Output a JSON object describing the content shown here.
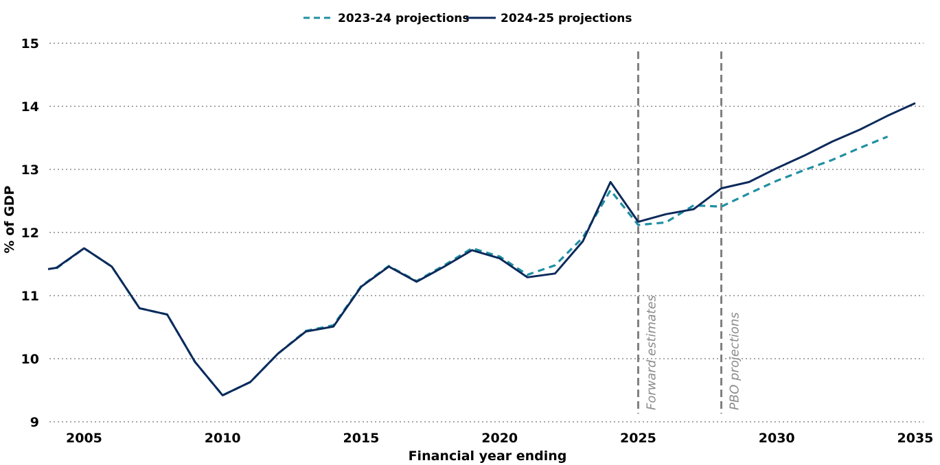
{
  "chart_data": {
    "type": "line",
    "xlabel": "Financial year ending",
    "ylabel": "% of GDP",
    "xlim": [
      2003.7,
      2035.1
    ],
    "ylim": [
      9,
      15
    ],
    "x_ticks": [
      2005,
      2010,
      2015,
      2020,
      2025,
      2030,
      2035
    ],
    "y_ticks": [
      9,
      10,
      11,
      12,
      13,
      14,
      15
    ],
    "grid": "horizontal-dotted",
    "legend": "top-center",
    "series": [
      {
        "name": "2023-24 projections",
        "color": "#1f8fa3",
        "style": "dashed",
        "x": [
          2004,
          2005,
          2006,
          2007,
          2008,
          2009,
          2010,
          2011,
          2012,
          2013,
          2014,
          2015,
          2016,
          2017,
          2018,
          2019,
          2020,
          2021,
          2022,
          2023,
          2024,
          2025,
          2026,
          2027,
          2028,
          2029,
          2030,
          2031,
          2032,
          2033,
          2034
        ],
        "y": [
          11.43,
          11.75,
          11.46,
          10.8,
          10.7,
          9.95,
          9.42,
          9.63,
          10.08,
          10.44,
          10.53,
          11.15,
          11.47,
          11.23,
          11.48,
          11.75,
          11.62,
          11.33,
          11.48,
          11.92,
          12.67,
          12.12,
          12.16,
          12.43,
          12.41,
          12.62,
          12.82,
          12.99,
          13.15,
          13.34,
          13.52
        ]
      },
      {
        "name": "2024-25 projections",
        "color": "#0c2a5b",
        "style": "solid",
        "x": [
          2003.7,
          2004,
          2005,
          2006,
          2007,
          2008,
          2009,
          2010,
          2011,
          2012,
          2013,
          2014,
          2015,
          2016,
          2017,
          2018,
          2019,
          2020,
          2021,
          2022,
          2023,
          2024,
          2025,
          2026,
          2027,
          2028,
          2029,
          2030,
          2031,
          2032,
          2033,
          2034,
          2035
        ],
        "y": [
          11.42,
          11.44,
          11.75,
          11.46,
          10.8,
          10.7,
          9.95,
          9.42,
          9.63,
          10.08,
          10.43,
          10.51,
          11.14,
          11.46,
          11.22,
          11.46,
          11.72,
          11.59,
          11.29,
          11.35,
          11.86,
          12.8,
          12.17,
          12.29,
          12.37,
          12.7,
          12.8,
          13.02,
          13.22,
          13.44,
          13.63,
          13.85,
          14.05
        ]
      }
    ],
    "annotations": [
      {
        "x": 2025,
        "label": "Forward estimates"
      },
      {
        "x": 2028,
        "label": "PBO projections"
      }
    ]
  }
}
